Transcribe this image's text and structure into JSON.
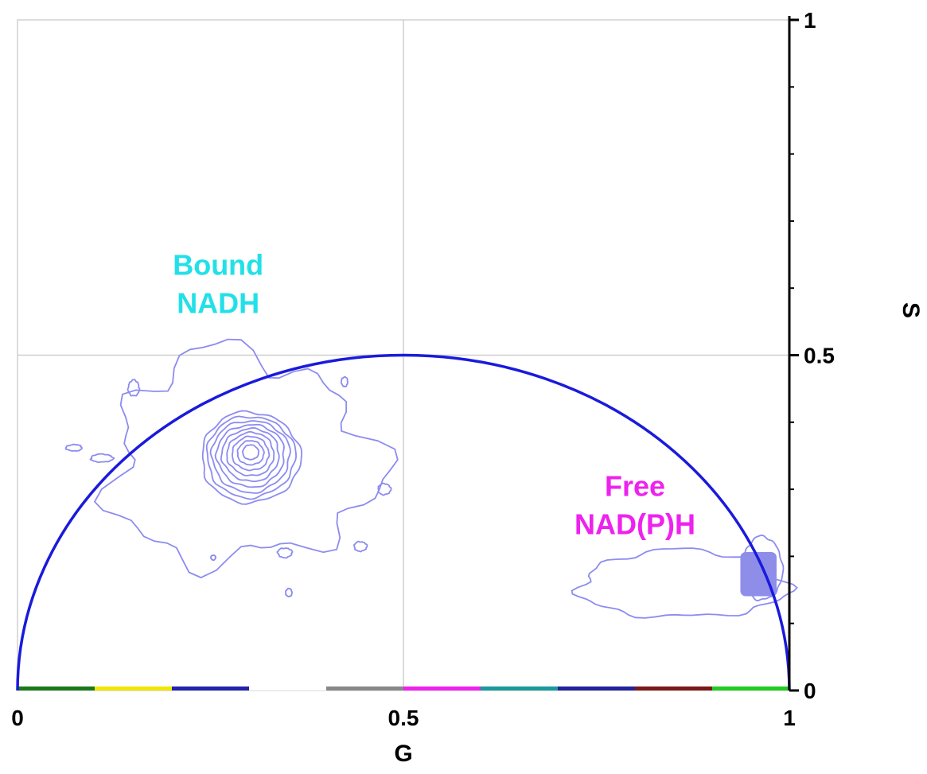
{
  "chart_data": {
    "type": "scatter",
    "title": "",
    "xlabel": "G",
    "ylabel": "S",
    "xlim": [
      0,
      1
    ],
    "ylim": [
      0,
      1
    ],
    "x_ticks": [
      "0",
      "0.5",
      "1"
    ],
    "y_ticks": [
      "0",
      "0.5",
      "1"
    ],
    "grid": "lines at G = 0.5 and S = 0.5",
    "reference_curve": "universal semicircle centered at (0.5, 0) with radius 0.5",
    "curve_color": "#1a1adc",
    "contour_color": "#8c8cf0",
    "annotations": [
      {
        "line1": "Bound",
        "line2": "NADH",
        "color": "#22e0e8",
        "x": 0.26,
        "y": 0.62
      },
      {
        "line1": "Free",
        "line2": "NAD(P)H",
        "color": "#ee22ee",
        "x": 0.8,
        "y": 0.29
      }
    ],
    "clusters": [
      {
        "center": [
          0.3,
          0.35
        ],
        "levels": 9,
        "note": "concentrated cluster near bound NADH position"
      },
      {
        "center": [
          0.96,
          0.17
        ],
        "levels": 1,
        "note": "dense filled region near free NAD(P)H"
      }
    ],
    "color_bar": [
      "#1a7a1a",
      "#f2e600",
      "#2222aa",
      "#ffffff",
      "#888888",
      "#ee22ee",
      "#1a9a9a",
      "#22229a",
      "#7a1a1a",
      "#22cc22"
    ]
  }
}
